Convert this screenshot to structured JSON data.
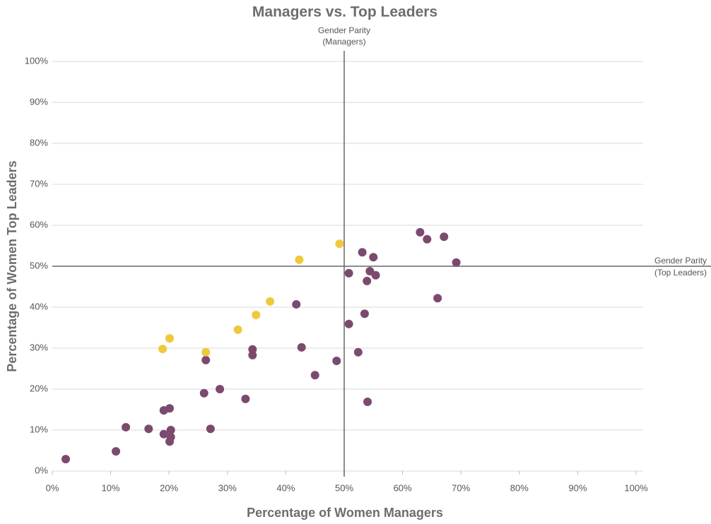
{
  "chart_data": {
    "type": "scatter",
    "title": "Managers vs. Top Leaders",
    "xlabel": "Percentage of Women Managers",
    "ylabel": "Percentage of Women Top Leaders",
    "xlim": [
      0,
      100
    ],
    "ylim": [
      0,
      100
    ],
    "xticks": [
      {
        "value": 0,
        "label": "0%"
      },
      {
        "value": 10,
        "label": "10%"
      },
      {
        "value": 20,
        "label": "20%"
      },
      {
        "value": 30,
        "label": "30%"
      },
      {
        "value": 40,
        "label": "40%"
      },
      {
        "value": 50,
        "label": "50%"
      },
      {
        "value": 60,
        "label": "60%"
      },
      {
        "value": 70,
        "label": "70%"
      },
      {
        "value": 80,
        "label": "80%"
      },
      {
        "value": 90,
        "label": "90%"
      },
      {
        "value": 100,
        "label": "100%"
      }
    ],
    "yticks": [
      {
        "value": 0,
        "label": "0%"
      },
      {
        "value": 10,
        "label": "10%"
      },
      {
        "value": 20,
        "label": "20%"
      },
      {
        "value": 30,
        "label": "30%"
      },
      {
        "value": 40,
        "label": "40%"
      },
      {
        "value": 50,
        "label": "50%"
      },
      {
        "value": 60,
        "label": "60%"
      },
      {
        "value": 70,
        "label": "70%"
      },
      {
        "value": 80,
        "label": "80%"
      },
      {
        "value": 90,
        "label": "90%"
      },
      {
        "value": 100,
        "label": "100%"
      }
    ],
    "grid": true,
    "reference_lines": [
      {
        "axis": "x",
        "value": 50,
        "label": [
          "Gender Parity",
          "(Managers)"
        ]
      },
      {
        "axis": "y",
        "value": 50,
        "label": [
          "Gender Parity",
          "(Top Leaders)"
        ]
      }
    ],
    "series": [
      {
        "color": "#7b4a6e",
        "x": [
          2.3,
          10.9,
          12.6,
          16.5,
          19.1,
          20.1,
          19.1,
          20.3,
          20.3,
          20.1,
          27.1,
          26.0,
          28.7,
          26.3,
          33.1,
          34.3,
          34.3,
          42.7,
          41.8,
          45.0,
          48.7,
          50.8,
          50.8,
          52.4,
          54.0,
          53.5,
          53.9,
          54.4,
          53.1,
          55.0,
          55.4,
          63.0,
          64.2,
          67.1,
          69.2,
          66.0
        ],
        "values": [
          2.9,
          4.8,
          10.7,
          10.3,
          14.8,
          15.3,
          9.0,
          10.0,
          8.3,
          7.2,
          10.3,
          19.0,
          20.0,
          27.1,
          17.6,
          29.7,
          28.3,
          30.2,
          40.7,
          23.4,
          26.9,
          35.9,
          48.3,
          29.0,
          16.9,
          38.4,
          46.4,
          48.8,
          53.4,
          52.2,
          47.8,
          58.3,
          56.6,
          57.2,
          50.9,
          42.2
        ]
      },
      {
        "color": "#f0c93a",
        "x": [
          18.9,
          20.1,
          26.3,
          31.8,
          34.9,
          37.3,
          42.3,
          49.2
        ],
        "values": [
          29.8,
          32.4,
          29.0,
          34.5,
          38.1,
          41.4,
          51.6,
          55.5
        ]
      }
    ]
  }
}
